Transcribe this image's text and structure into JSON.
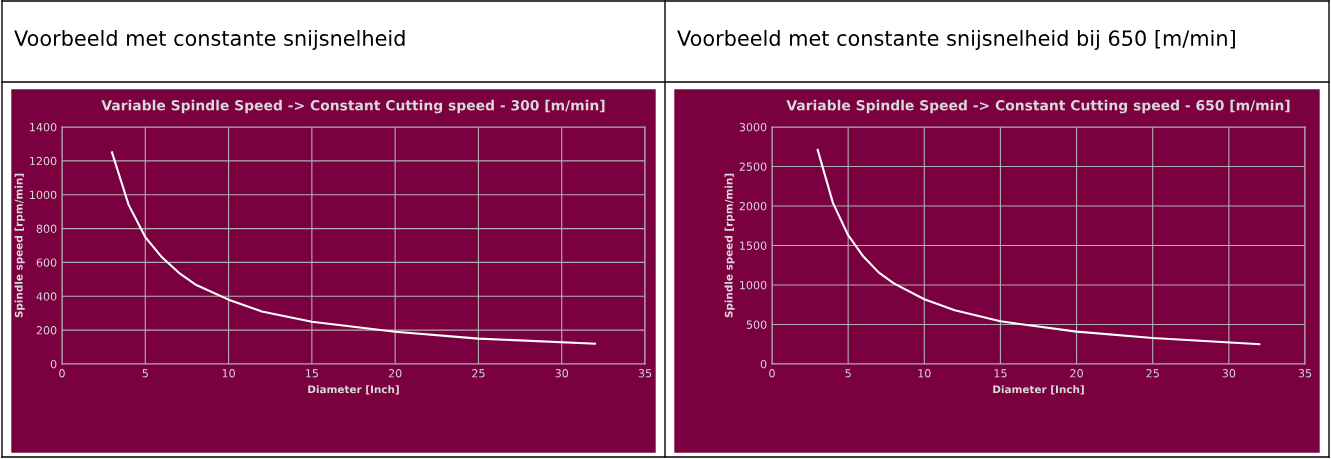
{
  "chart_data": [
    {
      "type": "line",
      "title": "Variable Spindle Speed -> Constant Cutting speed - 300 [m/min]",
      "xlabel": "Diameter [Inch]",
      "ylabel": "Spindle speed [rpm/min]",
      "annotations": [
        "Voorbeeld met constante snijsnelheid"
      ],
      "x": [
        3,
        4,
        5,
        6,
        7,
        8,
        10,
        12,
        15,
        20,
        25,
        32
      ],
      "series": [
        {
          "color": "#ffffff",
          "values": [
            1250,
            940,
            750,
            630,
            540,
            470,
            380,
            310,
            250,
            190,
            150,
            120
          ]
        }
      ],
      "xlim": [
        0,
        35
      ],
      "xticks": [
        0,
        5,
        10,
        15,
        20,
        25,
        30,
        35
      ],
      "ylim": [
        0,
        1400
      ],
      "yticks": [
        0,
        200,
        400,
        600,
        800,
        1000,
        1200,
        1400
      ],
      "grid": true,
      "marker": "none",
      "line_style": "solid",
      "legend": false
    },
    {
      "type": "line",
      "title": "Variable Spindle Speed -> Constant Cutting speed - 650 [m/min]",
      "xlabel": "Diameter [Inch]",
      "ylabel": "Spindle speed [rpm/min]",
      "annotations": [
        "Voorbeeld met constante snijsnelheid bij 650 [m/min]"
      ],
      "x": [
        3,
        4,
        5,
        6,
        7,
        8,
        10,
        12,
        15,
        20,
        25,
        32
      ],
      "series": [
        {
          "color": "#ffffff",
          "values": [
            2710,
            2040,
            1630,
            1360,
            1160,
            1020,
            820,
            680,
            540,
            410,
            330,
            250
          ]
        }
      ],
      "xlim": [
        0,
        35
      ],
      "xticks": [
        0,
        5,
        10,
        15,
        20,
        25,
        30,
        35
      ],
      "ylim": [
        0,
        3000
      ],
      "yticks": [
        0,
        500,
        1000,
        1500,
        2000,
        2500,
        3000
      ],
      "grid": true,
      "marker": "none",
      "line_style": "solid",
      "legend": false
    }
  ]
}
